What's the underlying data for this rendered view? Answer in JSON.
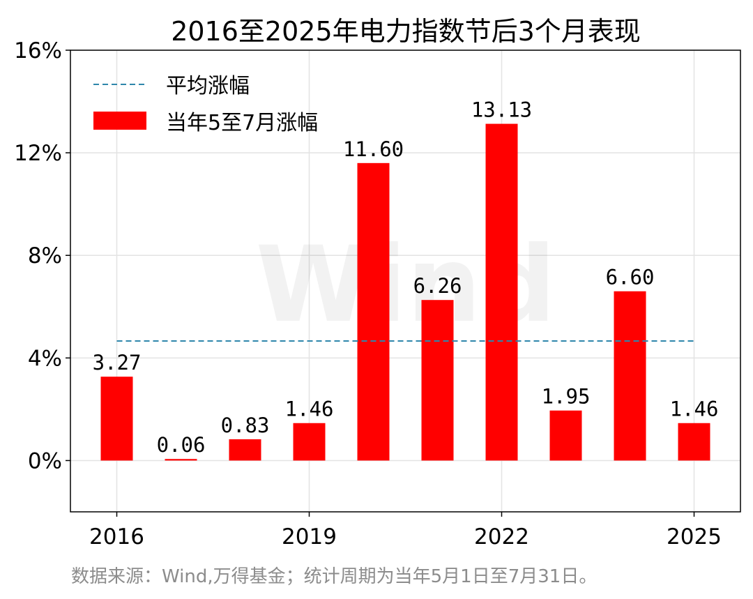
{
  "chart_data": {
    "type": "bar",
    "title": "2016至2025年电力指数节后3个月表现",
    "categories": [
      "2016",
      "2017",
      "2018",
      "2019",
      "2020",
      "2021",
      "2022",
      "2023",
      "2024",
      "2025"
    ],
    "x_tick_labels": [
      "2016",
      "2019",
      "2022",
      "2025"
    ],
    "series": [
      {
        "name": "当年5至7月涨幅",
        "color": "#ff0000",
        "values": [
          3.27,
          0.06,
          0.83,
          1.46,
          11.6,
          6.26,
          13.13,
          1.95,
          6.6,
          1.46
        ],
        "labels": [
          "3.27",
          "0.06",
          "0.83",
          "1.46",
          "11.60",
          "6.26",
          "13.13",
          "1.95",
          "6.60",
          "1.46"
        ]
      }
    ],
    "average_line": {
      "name": "平均涨幅",
      "value": 4.662,
      "color": "#2e86ab",
      "style": "dashed"
    },
    "ylim": [
      -2,
      16
    ],
    "y_ticks": [
      0,
      4,
      8,
      12,
      16
    ],
    "y_tick_labels": [
      "0%",
      "4%",
      "8%",
      "12%",
      "16%"
    ],
    "xlabel": "",
    "ylabel": "",
    "grid": true,
    "legend_position": "top-left"
  },
  "watermark": "Wind",
  "source_note": "数据来源：Wind,万得基金；统计周期为当年5月1日至7月31日。"
}
